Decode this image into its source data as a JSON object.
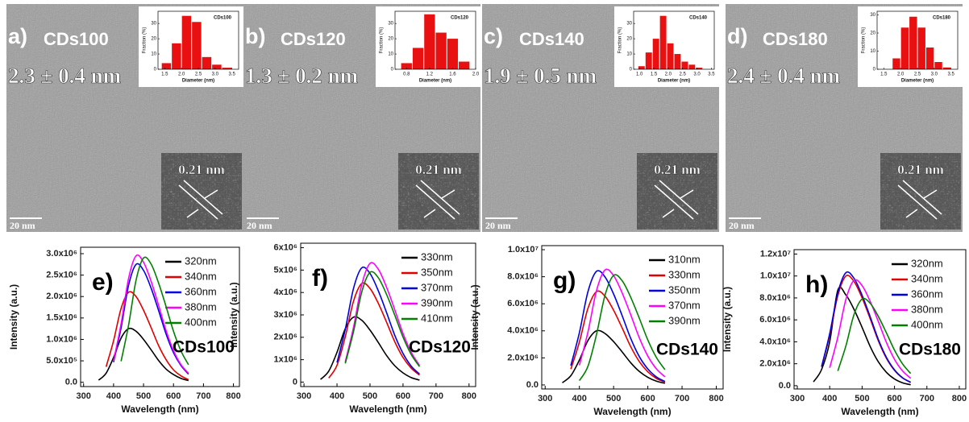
{
  "tem_panels": [
    {
      "label": "a)",
      "sample": "CDs100",
      "size": "2.3 ± 0.4 nm",
      "lattice": "0.21 nm",
      "scale": "20 nm"
    },
    {
      "label": "b)",
      "sample": "CDs120",
      "size": "1.3 ± 0.2 nm",
      "lattice": "0.21 nm",
      "scale": "20 nm"
    },
    {
      "label": "c)",
      "sample": "CDs140",
      "size": "1.9 ± 0.5 nm",
      "lattice": "0.21 nm",
      "scale": "20 nm"
    },
    {
      "label": "d)",
      "sample": "CDs180",
      "size": "2.4 ± 0.4 nm",
      "lattice": "0.21 nm",
      "scale": "20 nm"
    }
  ],
  "chart_data": [
    {
      "type": "histogram",
      "title": "CDs100",
      "xlabel": "Diameter (nm)",
      "ylabel": "Fraction (%)",
      "color": "#e81010",
      "bins": [
        1.4,
        1.7,
        2.0,
        2.3,
        2.6,
        2.9,
        3.2,
        3.5
      ],
      "values": [
        4,
        17,
        35,
        31,
        8,
        3,
        1
      ],
      "xlim": [
        1.3,
        3.7
      ],
      "xticks": [
        1.5,
        {
          "value": 2,
          "label": "2.0"
        },
        2.5,
        {
          "value": 3,
          "label": "3.0"
        },
        3.5
      ],
      "ylim": [
        0,
        38
      ],
      "yticks": [
        0,
        10,
        20,
        30
      ]
    },
    {
      "type": "histogram",
      "title": "CDs120",
      "xlabel": "Diameter (nm)",
      "ylabel": "Fraction (%)",
      "color": "#e81010",
      "bins": [
        0.7,
        0.9,
        1.1,
        1.3,
        1.5,
        1.7,
        1.9
      ],
      "values": [
        4,
        14,
        36,
        24,
        20,
        5
      ],
      "xlim": [
        0.6,
        2.0
      ],
      "xticks": [
        0.8,
        1.2,
        1.6,
        {
          "value": 2,
          "label": "2.0"
        }
      ],
      "ylim": [
        0,
        38
      ],
      "yticks": [
        0,
        10,
        20,
        30
      ]
    },
    {
      "type": "histogram",
      "title": "CDs140",
      "xlabel": "Diameter (nm)",
      "ylabel": "Fraction (%)",
      "color": "#e81010",
      "bins": [
        0.95,
        1.2,
        1.45,
        1.7,
        1.95,
        2.2,
        2.45,
        2.7,
        2.95,
        3.2
      ],
      "values": [
        2,
        11,
        20,
        35,
        17,
        10,
        5,
        3,
        1
      ],
      "xlim": [
        0.8,
        3.6
      ],
      "xticks": [
        {
          "value": 1,
          "label": "1.0"
        },
        1.5,
        {
          "value": 2,
          "label": "2.0"
        },
        2.5,
        {
          "value": 3,
          "label": "3.0"
        },
        3.5
      ],
      "ylim": [
        0,
        38
      ],
      "yticks": [
        0,
        10,
        20,
        30
      ]
    },
    {
      "type": "histogram",
      "title": "CDs180",
      "xlabel": "Diameter (nm)",
      "ylabel": "Fraction (%)",
      "color": "#e81010",
      "bins": [
        1.75,
        2.0,
        2.25,
        2.5,
        2.75,
        3.0,
        3.25,
        3.5
      ],
      "values": [
        6,
        23,
        29,
        23,
        12,
        4,
        1
      ],
      "xlim": [
        1.3,
        3.7
      ],
      "xticks": [
        1.5,
        {
          "value": 2,
          "label": "2.0"
        },
        2.5,
        {
          "value": 3,
          "label": "3.0"
        },
        3.5
      ],
      "ylim": [
        0,
        32
      ],
      "yticks": [
        0,
        10,
        20,
        30
      ]
    },
    {
      "type": "line",
      "panel_label": "e)",
      "annotation": "CDs100",
      "xlabel": "Wavelength (nm)",
      "ylabel": "Intensity (a.u.)",
      "legend": "upper right",
      "x": [
        350,
        375,
        400,
        425,
        450,
        475,
        500,
        525,
        550,
        575,
        600,
        625,
        650
      ],
      "xlim": [
        290,
        820
      ],
      "xticks": [
        300,
        400,
        500,
        600,
        700,
        800
      ],
      "ylim": [
        -100000,
        3150000
      ],
      "yticks": [
        {
          "value": 0,
          "label": "0.0"
        },
        {
          "value": 500000,
          "label": "5.0x10⁵"
        },
        {
          "value": 1000000,
          "label": "1.0x10⁶"
        },
        {
          "value": 1500000,
          "label": "1.5x10⁶"
        },
        {
          "value": 2000000,
          "label": "2.0x10⁶"
        },
        {
          "value": 2500000,
          "label": "2.5x10⁶"
        },
        {
          "value": 3000000,
          "label": "3.0x10⁶"
        }
      ],
      "series": [
        {
          "name": "320nm",
          "color": "#000000",
          "values": [
            50000,
            210000,
            580000,
            1030000,
            1250000,
            1190000,
            1000000,
            760000,
            510000,
            310000,
            180000,
            90000,
            40000
          ]
        },
        {
          "name": "340nm",
          "color": "#e00000",
          "values": [
            null,
            360000,
            970000,
            1720000,
            2100000,
            2000000,
            1680000,
            1280000,
            860000,
            530000,
            290000,
            150000,
            60000
          ]
        },
        {
          "name": "360nm",
          "color": "#0000e0",
          "values": [
            null,
            null,
            470000,
            1270000,
            2260000,
            2750000,
            2610000,
            2200000,
            1680000,
            1130000,
            690000,
            390000,
            190000
          ]
        },
        {
          "name": "380nm",
          "color": "#ff00ff",
          "values": [
            null,
            null,
            500000,
            1360000,
            2420000,
            2950000,
            2800000,
            2360000,
            1800000,
            1210000,
            740000,
            410000,
            210000
          ]
        },
        {
          "name": "400nm",
          "color": "#008000",
          "values": [
            null,
            null,
            null,
            490000,
            1330000,
            2380000,
            2900000,
            2760000,
            2320000,
            1770000,
            1190000,
            730000,
            410000
          ]
        }
      ]
    },
    {
      "type": "line",
      "panel_label": "f)",
      "annotation": "CDs120",
      "xlabel": "Wavelength (nm)",
      "ylabel": "Intensity (a.u.)",
      "legend": "upper right",
      "x": [
        350,
        375,
        400,
        425,
        450,
        475,
        500,
        525,
        550,
        575,
        600,
        625,
        650
      ],
      "xlim": [
        290,
        820
      ],
      "xticks": [
        300,
        400,
        500,
        600,
        700,
        800
      ],
      "ylim": [
        -200000,
        6200000
      ],
      "yticks": [
        0,
        {
          "value": 1000000,
          "label": "1x10⁶"
        },
        {
          "value": 2000000,
          "label": "2x10⁶"
        },
        {
          "value": 3000000,
          "label": "3x10⁶"
        },
        {
          "value": 4000000,
          "label": "4x10⁶"
        },
        {
          "value": 5000000,
          "label": "5x10⁶"
        },
        {
          "value": 6000000,
          "label": "6x10⁶"
        }
      ],
      "series": [
        {
          "name": "330nm",
          "color": "#000000",
          "values": [
            120000,
            490000,
            1330000,
            2380000,
            2900000,
            2760000,
            2320000,
            1770000,
            1190000,
            730000,
            410000,
            200000,
            90000
          ]
        },
        {
          "name": "350nm",
          "color": "#e00000",
          "values": [
            null,
            180000,
            750000,
            2020000,
            3610000,
            4400000,
            4180000,
            3520000,
            2680000,
            1800000,
            1100000,
            620000,
            310000
          ]
        },
        {
          "name": "370nm",
          "color": "#0000e0",
          "values": [
            null,
            null,
            870000,
            2350000,
            4180000,
            5100000,
            4850000,
            4080000,
            3110000,
            2090000,
            1280000,
            710000,
            360000
          ]
        },
        {
          "name": "390nm",
          "color": "#ff00ff",
          "values": [
            null,
            null,
            null,
            900000,
            2440000,
            4350000,
            5300000,
            5040000,
            4240000,
            3230000,
            2170000,
            1330000,
            740000
          ]
        },
        {
          "name": "410nm",
          "color": "#008000",
          "values": [
            null,
            null,
            null,
            830000,
            2250000,
            4020000,
            4900000,
            4660000,
            3920000,
            2990000,
            2010000,
            1230000,
            690000
          ]
        }
      ]
    },
    {
      "type": "line",
      "panel_label": "g)",
      "annotation": "CDs140",
      "xlabel": "Wavelength (nm)",
      "ylabel": "Intensity (a.u.)",
      "legend": "upper right",
      "x": [
        350,
        375,
        400,
        425,
        450,
        475,
        500,
        525,
        550,
        575,
        600,
        625,
        650
      ],
      "xlim": [
        290,
        820
      ],
      "xticks": [
        300,
        400,
        500,
        600,
        700,
        800
      ],
      "ylim": [
        -300000,
        10300000
      ],
      "yticks": [
        {
          "value": 0,
          "label": "0.0"
        },
        {
          "value": 2000000,
          "label": "2.0x10⁶"
        },
        {
          "value": 4000000,
          "label": "4.0x10⁶"
        },
        {
          "value": 6000000,
          "label": "6.0x10⁶"
        },
        {
          "value": 8000000,
          "label": "8.0x10⁶"
        },
        {
          "value": 10000000,
          "label": "1.0x10⁷"
        }
      ],
      "series": [
        {
          "name": "310nm",
          "color": "#000000",
          "values": [
            160000,
            680000,
            1840000,
            3280000,
            4000000,
            3800000,
            3200000,
            2440000,
            1640000,
            1000000,
            560000,
            280000,
            120000
          ]
        },
        {
          "name": "330nm",
          "color": "#e00000",
          "values": [
            null,
            1170000,
            3170000,
            5660000,
            6900000,
            6560000,
            5520000,
            4210000,
            2830000,
            1730000,
            970000,
            480000,
            210000
          ]
        },
        {
          "name": "350nm",
          "color": "#0000e0",
          "values": [
            null,
            1430000,
            3860000,
            6890000,
            8400000,
            7980000,
            6720000,
            5120000,
            3440000,
            2100000,
            1180000,
            590000,
            250000
          ]
        },
        {
          "name": "370nm",
          "color": "#ff00ff",
          "values": [
            null,
            null,
            1450000,
            3910000,
            6970000,
            8500000,
            8080000,
            6800000,
            5190000,
            3490000,
            2130000,
            1190000,
            600000
          ]
        },
        {
          "name": "390nm",
          "color": "#008000",
          "values": [
            null,
            null,
            320000,
            1380000,
            3730000,
            6640000,
            8100000,
            7700000,
            6480000,
            4940000,
            3320000,
            2030000,
            1130000
          ]
        }
      ]
    },
    {
      "type": "line",
      "panel_label": "h)",
      "annotation": "CDs180",
      "xlabel": "Wavelength (nm)",
      "ylabel": "Intensity (a.u.)",
      "legend": "upper right",
      "x": [
        350,
        375,
        400,
        425,
        450,
        475,
        500,
        525,
        550,
        575,
        600,
        625,
        650
      ],
      "xlim": [
        290,
        820
      ],
      "xticks": [
        300,
        400,
        500,
        600,
        700,
        800
      ],
      "ylim": [
        -300000,
        12400000
      ],
      "yticks": [
        {
          "value": 0,
          "label": "0.0"
        },
        {
          "value": 2000000,
          "label": "2.0x10⁶"
        },
        {
          "value": 4000000,
          "label": "4.0x10⁶"
        },
        {
          "value": 6000000,
          "label": "6.0x10⁶"
        },
        {
          "value": 8000000,
          "label": "8.0x10⁶"
        },
        {
          "value": 10000000,
          "label": "1.0x10⁷"
        },
        {
          "value": 12000000,
          "label": "1.2x10⁷"
        }
      ],
      "series": [
        {
          "name": "320nm",
          "color": "#000000",
          "values": [
            350000,
            1480000,
            4000000,
            8700000,
            8270000,
            6960000,
            5310000,
            3570000,
            2180000,
            1220000,
            610000,
            260000,
            90000
          ]
        },
        {
          "name": "340nm",
          "color": "#e00000",
          "values": [
            null,
            1700000,
            4600000,
            8200000,
            10000000,
            9500000,
            8000000,
            6100000,
            4100000,
            2500000,
            1400000,
            700000,
            300000
          ]
        },
        {
          "name": "360nm",
          "color": "#0000e0",
          "values": [
            null,
            1750000,
            4740000,
            8450000,
            10300000,
            9790000,
            8240000,
            6280000,
            4220000,
            2580000,
            1440000,
            720000,
            310000
          ]
        },
        {
          "name": "380nm",
          "color": "#ff00ff",
          "values": [
            null,
            null,
            1630000,
            4420000,
            7870000,
            9600000,
            9120000,
            7680000,
            5860000,
            3940000,
            2400000,
            1340000,
            670000
          ]
        },
        {
          "name": "400nm",
          "color": "#008000",
          "values": [
            null,
            null,
            null,
            1340000,
            3630000,
            6480000,
            7900000,
            7510000,
            6320000,
            4820000,
            3240000,
            1980000,
            1110000
          ]
        }
      ]
    }
  ]
}
